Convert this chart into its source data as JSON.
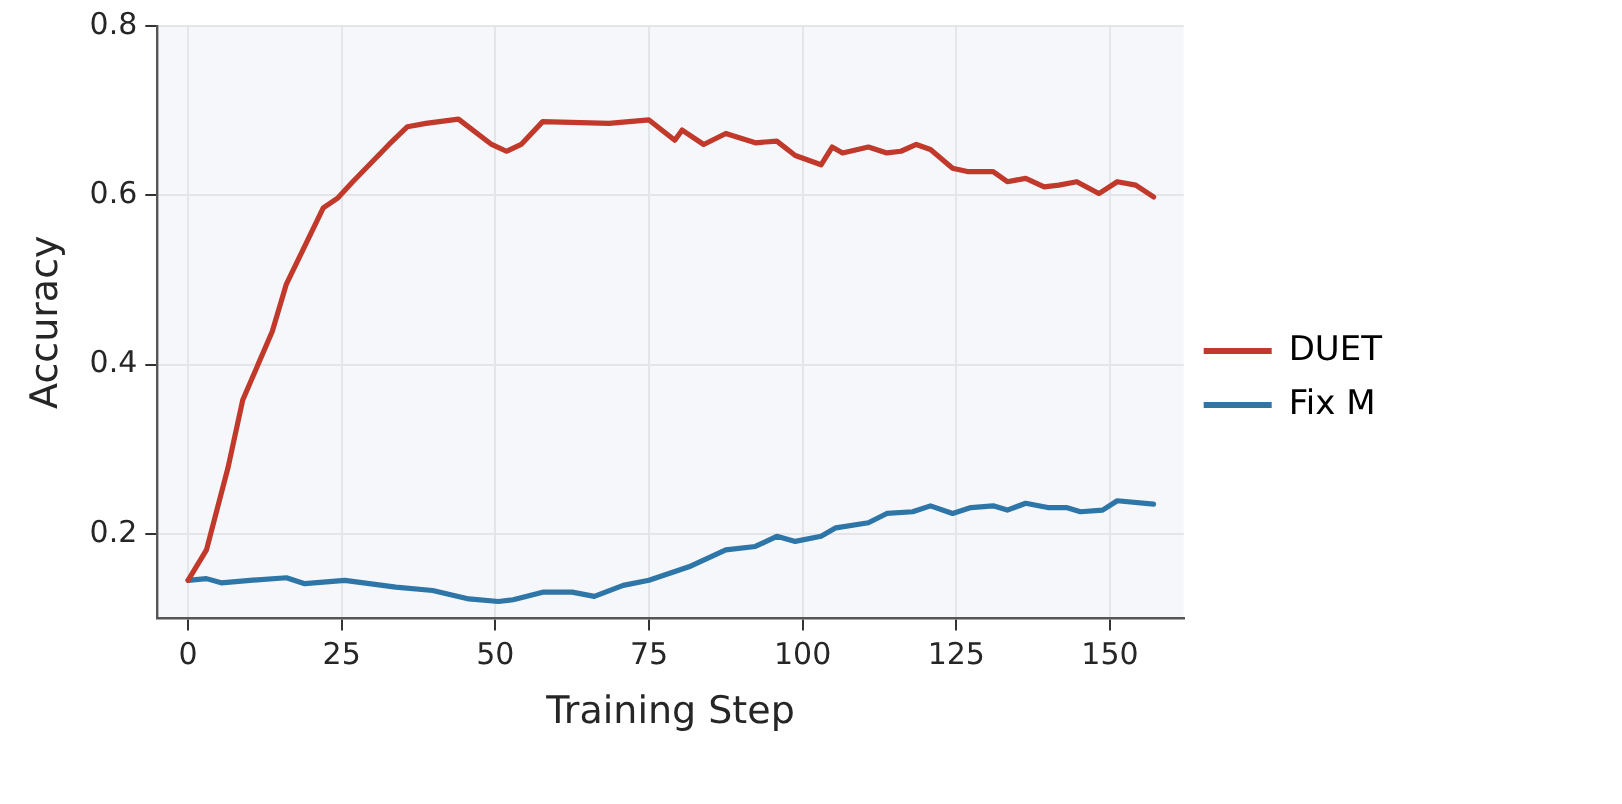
{
  "chart_data": {
    "type": "line",
    "xlabel": "Training Step",
    "ylabel": "Accuracy",
    "xlim": [
      -5,
      162
    ],
    "ylim": [
      0.1,
      0.8
    ],
    "xticks": [
      0,
      25,
      50,
      75,
      100,
      125,
      150
    ],
    "yticks": [
      0.2,
      0.4,
      0.6,
      0.8
    ],
    "grid": true,
    "legend": "right",
    "marker": "none",
    "line_style": "solid",
    "series": [
      {
        "name": "DUET",
        "color": "#c0392b",
        "x": [
          0,
          3,
          6.5,
          8.9,
          13.7,
          16,
          22,
          24.4,
          26.8,
          32.7,
          35.7,
          38.7,
          44,
          49.4,
          51.8,
          54.2,
          57.7,
          68.5,
          75,
          79.2,
          80.4,
          83.9,
          87.5,
          92.3,
          95.8,
          98.8,
          103,
          104.8,
          106.5,
          110.7,
          113.7,
          116,
          118.5,
          120.8,
          124.4,
          126.8,
          131,
          133.3,
          136.3,
          139.3,
          141.7,
          144.6,
          148.2,
          151.2,
          154.2,
          157.1
        ],
        "values": [
          0.145,
          0.181,
          0.278,
          0.358,
          0.439,
          0.495,
          0.585,
          0.597,
          0.616,
          0.66,
          0.681,
          0.685,
          0.69,
          0.66,
          0.652,
          0.66,
          0.687,
          0.685,
          0.689,
          0.665,
          0.677,
          0.66,
          0.673,
          0.662,
          0.664,
          0.647,
          0.636,
          0.657,
          0.65,
          0.657,
          0.65,
          0.652,
          0.66,
          0.654,
          0.632,
          0.628,
          0.628,
          0.616,
          0.62,
          0.61,
          0.612,
          0.616,
          0.602,
          0.616,
          0.612,
          0.598
        ]
      },
      {
        "name": "Fix M",
        "color": "#2e75a8",
        "x": [
          0,
          3,
          5.4,
          10.1,
          16,
          19,
          25.5,
          33.8,
          39.8,
          45.7,
          50.5,
          52.9,
          57.7,
          62.5,
          66.1,
          70.8,
          75,
          81.5,
          87.5,
          92.3,
          95.8,
          98.8,
          103,
          105.4,
          110.7,
          113.7,
          117.9,
          120.8,
          124.4,
          127.4,
          131,
          133.3,
          136.3,
          139.9,
          142.9,
          145.2,
          148.8,
          151.2,
          157.1
        ],
        "values": [
          0.145,
          0.147,
          0.142,
          0.145,
          0.148,
          0.141,
          0.145,
          0.137,
          0.133,
          0.123,
          0.12,
          0.122,
          0.131,
          0.131,
          0.126,
          0.139,
          0.145,
          0.161,
          0.181,
          0.185,
          0.197,
          0.191,
          0.197,
          0.207,
          0.213,
          0.224,
          0.226,
          0.233,
          0.224,
          0.231,
          0.233,
          0.228,
          0.236,
          0.231,
          0.231,
          0.226,
          0.228,
          0.239,
          0.235
        ]
      }
    ]
  }
}
